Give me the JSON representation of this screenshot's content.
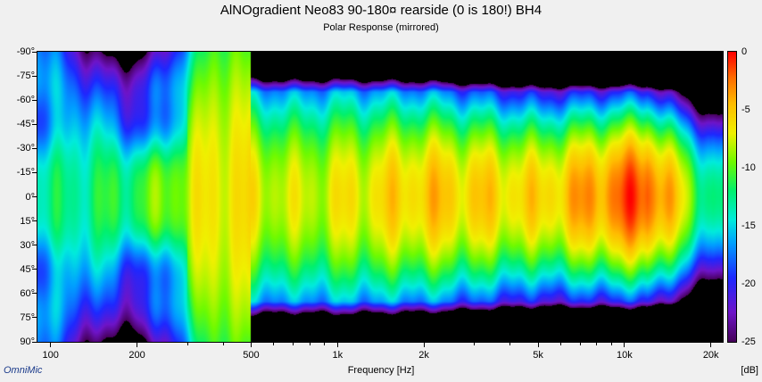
{
  "chart_data": {
    "type": "heatmap",
    "title": "AlNOgradient Neo83 90-180¤ rearside (0 is 180!) BH4",
    "subtitle": "Polar Response (mirrored)",
    "xlabel": "Frequency [Hz]",
    "ylabel": "",
    "x_scale": "log",
    "xlim": [
      90,
      22000
    ],
    "ylim": [
      -90,
      90
    ],
    "x_ticks": [
      {
        "value": 100,
        "label": "100"
      },
      {
        "value": 200,
        "label": "200"
      },
      {
        "value": 500,
        "label": "500"
      },
      {
        "value": 1000,
        "label": "1k"
      },
      {
        "value": 2000,
        "label": "2k"
      },
      {
        "value": 5000,
        "label": "5k"
      },
      {
        "value": 10000,
        "label": "10k"
      },
      {
        "value": 20000,
        "label": "20k"
      }
    ],
    "y_ticks": [
      {
        "value": -90,
        "label": "-90°"
      },
      {
        "value": -75,
        "label": "-75°"
      },
      {
        "value": -60,
        "label": "-60°"
      },
      {
        "value": -45,
        "label": "-45°"
      },
      {
        "value": -30,
        "label": "-30°"
      },
      {
        "value": -15,
        "label": "-15°"
      },
      {
        "value": 0,
        "label": "0°"
      },
      {
        "value": 15,
        "label": "15°"
      },
      {
        "value": 30,
        "label": "30°"
      },
      {
        "value": 45,
        "label": "45°"
      },
      {
        "value": 60,
        "label": "60°"
      },
      {
        "value": 75,
        "label": "75°"
      },
      {
        "value": 90,
        "label": "90°"
      }
    ],
    "colorbar": {
      "unit": "[dB]",
      "range": [
        -25,
        0
      ],
      "ticks": [
        {
          "value": 0,
          "label": "0"
        },
        {
          "value": -5,
          "label": "-5"
        },
        {
          "value": -10,
          "label": "-10"
        },
        {
          "value": -15,
          "label": "-15"
        },
        {
          "value": -20,
          "label": "-20"
        },
        {
          "value": -25,
          "label": "-25"
        }
      ]
    },
    "on_axis_level_db": [
      {
        "freq": 100,
        "db": -13
      },
      {
        "freq": 200,
        "db": -11
      },
      {
        "freq": 400,
        "db": -6
      },
      {
        "freq": 700,
        "db": -8
      },
      {
        "freq": 1500,
        "db": -6
      },
      {
        "freq": 2000,
        "db": -5
      },
      {
        "freq": 5000,
        "db": -6
      },
      {
        "freq": 10000,
        "db": -2
      },
      {
        "freq": 12000,
        "db": -1
      },
      {
        "freq": 16000,
        "db": -7
      },
      {
        "freq": 20000,
        "db": -13
      }
    ]
  },
  "brand": "OmniMic"
}
